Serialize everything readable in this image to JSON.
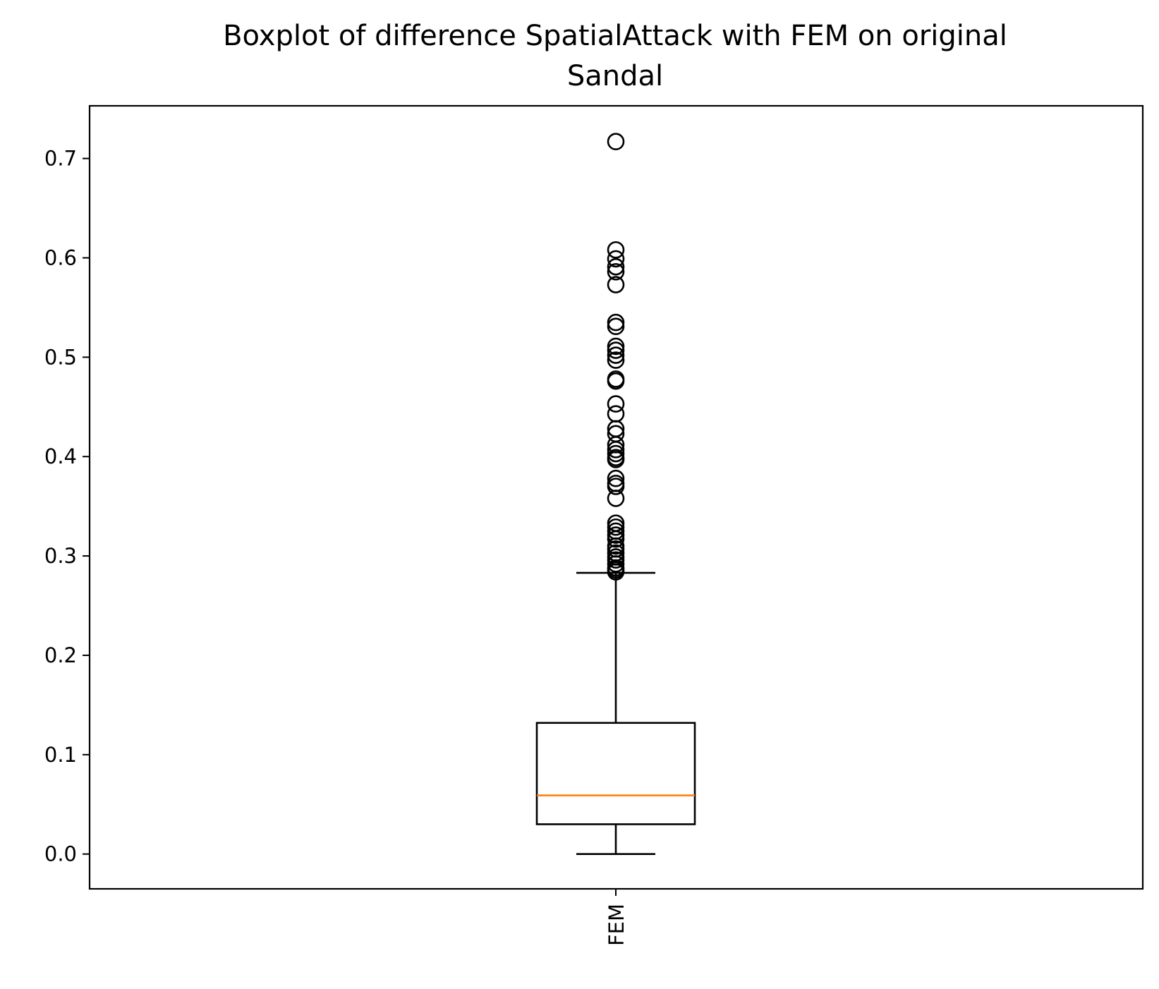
{
  "chart_data": {
    "type": "box",
    "title_line1": "Boxplot of difference SpatialAttack with FEM on original",
    "title_line2": "Sandal",
    "xlabel": "",
    "ylabel": "",
    "categories": [
      "FEM"
    ],
    "ylim": [
      -0.035,
      0.753
    ],
    "yticks": [
      0.0,
      0.1,
      0.2,
      0.3,
      0.4,
      0.5,
      0.6,
      0.7
    ],
    "ytick_labels": [
      "0.0",
      "0.1",
      "0.2",
      "0.3",
      "0.4",
      "0.5",
      "0.6",
      "0.7"
    ],
    "grid": false,
    "box": {
      "whisker_low": 0.0,
      "q1": 0.03,
      "median": 0.059,
      "q3": 0.132,
      "whisker_high": 0.283
    },
    "outliers": [
      0.717,
      0.608,
      0.599,
      0.591,
      0.586,
      0.573,
      0.535,
      0.531,
      0.511,
      0.507,
      0.502,
      0.497,
      0.478,
      0.476,
      0.453,
      0.443,
      0.428,
      0.423,
      0.412,
      0.407,
      0.403,
      0.399,
      0.397,
      0.378,
      0.373,
      0.37,
      0.358,
      0.333,
      0.329,
      0.325,
      0.321,
      0.317,
      0.31,
      0.307,
      0.303,
      0.299,
      0.296,
      0.292,
      0.288,
      0.286,
      0.284
    ],
    "colors": {
      "box": "#000000",
      "median": "#ff7f0e",
      "outlier": "#000000"
    }
  }
}
